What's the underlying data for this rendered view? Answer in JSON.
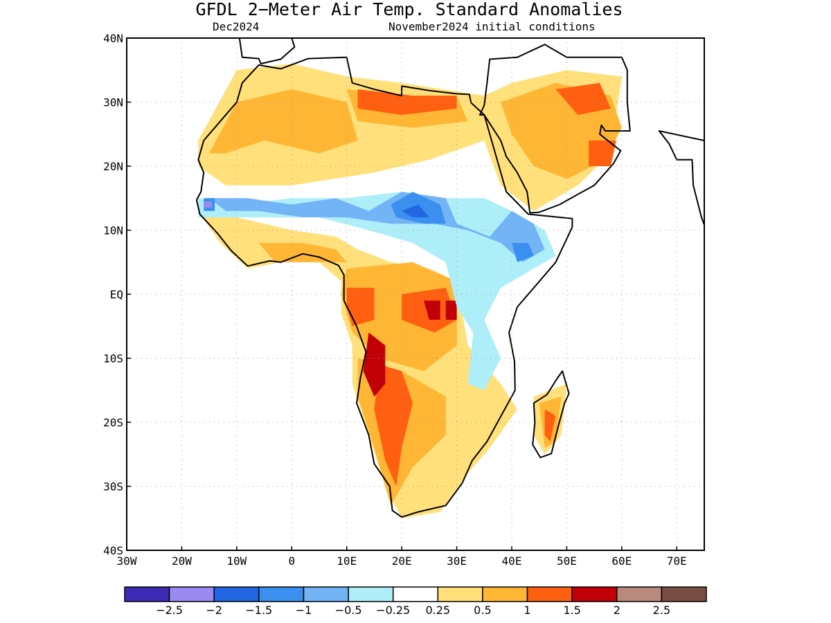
{
  "title": "GFDL 2−Meter Air Temp. Standard Anomalies",
  "subtitle_left": "Dec2024",
  "subtitle_right": "November2024 initial conditions",
  "map": {
    "lon_range": [
      -30,
      75
    ],
    "lat_range": [
      -40,
      40
    ],
    "x_ticks": [
      {
        "value": -30,
        "label": "30W"
      },
      {
        "value": -20,
        "label": "20W"
      },
      {
        "value": -10,
        "label": "10W"
      },
      {
        "value": 0,
        "label": "0"
      },
      {
        "value": 10,
        "label": "10E"
      },
      {
        "value": 20,
        "label": "20E"
      },
      {
        "value": 30,
        "label": "30E"
      },
      {
        "value": 40,
        "label": "40E"
      },
      {
        "value": 50,
        "label": "50E"
      },
      {
        "value": 60,
        "label": "60E"
      },
      {
        "value": 70,
        "label": "70E"
      }
    ],
    "y_ticks": [
      {
        "value": 40,
        "label": "40N"
      },
      {
        "value": 30,
        "label": "30N"
      },
      {
        "value": 20,
        "label": "20N"
      },
      {
        "value": 10,
        "label": "10N"
      },
      {
        "value": 0,
        "label": "EQ"
      },
      {
        "value": -10,
        "label": "10S"
      },
      {
        "value": -20,
        "label": "20S"
      },
      {
        "value": -30,
        "label": "30S"
      },
      {
        "value": -40,
        "label": "40S"
      }
    ],
    "grid": true
  },
  "colorbar": {
    "colors": [
      "#3d2bb5",
      "#9b8af2",
      "#2266e3",
      "#3b8fef",
      "#73b4f7",
      "#aeeef8",
      "#ffffff",
      "#ffe07a",
      "#ffb634",
      "#ff5f10",
      "#c00006",
      "#b78a7d",
      "#7a4d42"
    ],
    "labels": [
      "−2.5",
      "−2",
      "−1.5",
      "−1",
      "−0.5",
      "−0.25",
      "0.25",
      "0.5",
      "1",
      "1.5",
      "2",
      "2.5"
    ]
  },
  "anomaly_regions": [
    {
      "level": 1,
      "poly": [
        [
          -17,
          24
        ],
        [
          -10,
          35
        ],
        [
          0,
          36
        ],
        [
          10,
          34
        ],
        [
          20,
          33
        ],
        [
          35,
          31
        ],
        [
          40,
          33
        ],
        [
          50,
          35
        ],
        [
          60,
          34
        ],
        [
          58,
          22
        ],
        [
          52,
          17
        ],
        [
          44,
          13
        ],
        [
          38,
          17
        ],
        [
          35,
          24
        ],
        [
          25,
          21
        ],
        [
          15,
          19
        ],
        [
          0,
          17
        ],
        [
          -12,
          17
        ],
        [
          -17,
          20
        ]
      ]
    },
    {
      "level": 1,
      "poly": [
        [
          -17,
          13
        ],
        [
          -10,
          12
        ],
        [
          0,
          10
        ],
        [
          8,
          9
        ],
        [
          12,
          7
        ],
        [
          18,
          5
        ],
        [
          25,
          4
        ],
        [
          30,
          2
        ],
        [
          32,
          -8
        ],
        [
          38,
          -14
        ],
        [
          41,
          -18
        ],
        [
          36,
          -24
        ],
        [
          32,
          -28
        ],
        [
          27,
          -34
        ],
        [
          20,
          -35
        ],
        [
          17,
          -30
        ],
        [
          14,
          -22
        ],
        [
          11,
          -14
        ],
        [
          11,
          -8
        ],
        [
          9,
          -3
        ],
        [
          9,
          2
        ],
        [
          5,
          5
        ],
        [
          -2,
          5
        ],
        [
          -8,
          4
        ],
        [
          -13,
          8
        ]
      ]
    },
    {
      "level": 1,
      "poly": [
        [
          44,
          -16
        ],
        [
          50,
          -14
        ],
        [
          49,
          -22
        ],
        [
          46,
          -25
        ],
        [
          44,
          -22
        ]
      ]
    },
    {
      "level": 2,
      "poly": [
        [
          -15,
          22
        ],
        [
          -10,
          30
        ],
        [
          0,
          32
        ],
        [
          10,
          30
        ],
        [
          12,
          24
        ],
        [
          5,
          22
        ],
        [
          -5,
          24
        ],
        [
          -12,
          22
        ]
      ]
    },
    {
      "level": 2,
      "poly": [
        [
          10,
          32
        ],
        [
          20,
          31
        ],
        [
          30,
          31
        ],
        [
          32,
          27
        ],
        [
          22,
          26
        ],
        [
          12,
          27
        ]
      ]
    },
    {
      "level": 2,
      "poly": [
        [
          38,
          30
        ],
        [
          48,
          33
        ],
        [
          58,
          31
        ],
        [
          60,
          26
        ],
        [
          57,
          21
        ],
        [
          50,
          18
        ],
        [
          44,
          20
        ],
        [
          40,
          25
        ]
      ]
    },
    {
      "level": 2,
      "poly": [
        [
          10,
          4
        ],
        [
          22,
          5
        ],
        [
          30,
          2
        ],
        [
          30,
          -8
        ],
        [
          24,
          -12
        ],
        [
          16,
          -10
        ],
        [
          11,
          -6
        ],
        [
          9,
          0
        ]
      ]
    },
    {
      "level": 2,
      "poly": [
        [
          12,
          -10
        ],
        [
          20,
          -12
        ],
        [
          28,
          -16
        ],
        [
          28,
          -22
        ],
        [
          22,
          -27
        ],
        [
          18,
          -33
        ],
        [
          15,
          -24
        ],
        [
          12,
          -16
        ]
      ]
    },
    {
      "level": 2,
      "poly": [
        [
          -6,
          8
        ],
        [
          2,
          8
        ],
        [
          8,
          7
        ],
        [
          10,
          5
        ],
        [
          5,
          5
        ],
        [
          -3,
          5
        ]
      ]
    },
    {
      "level": 2,
      "poly": [
        [
          45,
          -17
        ],
        [
          49,
          -16
        ],
        [
          48,
          -23
        ],
        [
          46,
          -24
        ]
      ]
    },
    {
      "level": 3,
      "poly": [
        [
          12,
          32
        ],
        [
          22,
          31
        ],
        [
          30,
          31
        ],
        [
          30,
          29
        ],
        [
          20,
          28
        ],
        [
          12,
          29
        ]
      ]
    },
    {
      "level": 3,
      "poly": [
        [
          48,
          32
        ],
        [
          56,
          33
        ],
        [
          58,
          29
        ],
        [
          52,
          28
        ]
      ]
    },
    {
      "level": 3,
      "poly": [
        [
          54,
          24
        ],
        [
          59,
          24
        ],
        [
          58,
          20
        ],
        [
          54,
          20
        ]
      ]
    },
    {
      "level": 3,
      "poly": [
        [
          10,
          1
        ],
        [
          15,
          1
        ],
        [
          15,
          -4
        ],
        [
          11,
          -5
        ],
        [
          10,
          -2
        ]
      ]
    },
    {
      "level": 3,
      "poly": [
        [
          20,
          0
        ],
        [
          28,
          1
        ],
        [
          30,
          -4
        ],
        [
          26,
          -6
        ],
        [
          20,
          -4
        ]
      ]
    },
    {
      "level": 3,
      "poly": [
        [
          16,
          -11
        ],
        [
          20,
          -12
        ],
        [
          22,
          -17
        ],
        [
          20,
          -24
        ],
        [
          19,
          -30
        ],
        [
          17,
          -26
        ],
        [
          15,
          -18
        ]
      ]
    },
    {
      "level": 3,
      "poly": [
        [
          46,
          -18
        ],
        [
          48,
          -19
        ],
        [
          47,
          -23
        ],
        [
          46,
          -22
        ]
      ]
    },
    {
      "level": 4,
      "poly": [
        [
          14,
          -6
        ],
        [
          17,
          -8
        ],
        [
          17,
          -14
        ],
        [
          15,
          -16
        ],
        [
          13,
          -12
        ]
      ]
    },
    {
      "level": 4,
      "poly": [
        [
          24,
          -1
        ],
        [
          27,
          -1
        ],
        [
          27,
          -4
        ],
        [
          25,
          -4
        ]
      ]
    },
    {
      "level": 4,
      "poly": [
        [
          28,
          -1
        ],
        [
          30,
          -1
        ],
        [
          30,
          -4
        ],
        [
          28,
          -4
        ]
      ]
    },
    {
      "level": -1,
      "poly": [
        [
          -10,
          14
        ],
        [
          0,
          15
        ],
        [
          10,
          15
        ],
        [
          20,
          16
        ],
        [
          28,
          15
        ],
        [
          35,
          15
        ],
        [
          40,
          13
        ],
        [
          46,
          10
        ],
        [
          48,
          6
        ],
        [
          42,
          3
        ],
        [
          38,
          1
        ],
        [
          35,
          -4
        ],
        [
          38,
          -10
        ],
        [
          35,
          -15
        ],
        [
          32,
          -14
        ],
        [
          33,
          -6
        ],
        [
          30,
          -2
        ],
        [
          28,
          5
        ],
        [
          22,
          8
        ],
        [
          14,
          10
        ],
        [
          5,
          12
        ],
        [
          -5,
          12
        ],
        [
          -12,
          12
        ],
        [
          -17,
          12
        ],
        [
          -17,
          15
        ]
      ]
    },
    {
      "level": -2,
      "poly": [
        [
          -15,
          15
        ],
        [
          -8,
          15
        ],
        [
          0,
          14
        ],
        [
          8,
          15
        ],
        [
          14,
          13
        ],
        [
          20,
          16
        ],
        [
          28,
          15
        ],
        [
          30,
          11
        ],
        [
          36,
          9
        ],
        [
          40,
          13
        ],
        [
          44,
          11
        ],
        [
          46,
          7
        ],
        [
          42,
          5
        ],
        [
          38,
          8
        ],
        [
          32,
          10
        ],
        [
          26,
          11
        ],
        [
          18,
          11
        ],
        [
          10,
          12
        ],
        [
          2,
          12
        ],
        [
          -6,
          13
        ],
        [
          -12,
          13
        ]
      ]
    },
    {
      "level": -3,
      "poly": [
        [
          18,
          14
        ],
        [
          22,
          16
        ],
        [
          27,
          14
        ],
        [
          28,
          11
        ],
        [
          24,
          11
        ],
        [
          19,
          12
        ]
      ]
    },
    {
      "level": -3,
      "poly": [
        [
          -16,
          15
        ],
        [
          -14,
          15
        ],
        [
          -14,
          13
        ],
        [
          -16,
          13
        ]
      ]
    },
    {
      "level": -3,
      "poly": [
        [
          40,
          8
        ],
        [
          43,
          8
        ],
        [
          44,
          6
        ],
        [
          41,
          5
        ]
      ]
    },
    {
      "level": -4,
      "poly": [
        [
          20,
          13
        ],
        [
          23,
          14
        ],
        [
          25,
          12
        ],
        [
          22,
          12
        ]
      ]
    },
    {
      "level": -5,
      "poly": [
        [
          -16,
          14.5
        ],
        [
          -14.5,
          14.5
        ],
        [
          -14.5,
          13.5
        ],
        [
          -16,
          13.5
        ]
      ]
    }
  ]
}
